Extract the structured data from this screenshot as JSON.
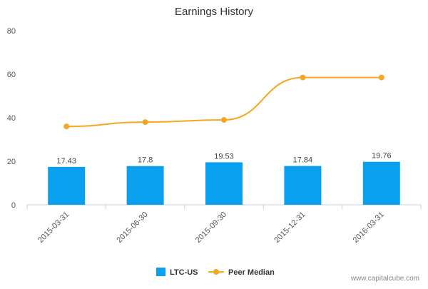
{
  "chart_data": {
    "type": "bar",
    "title": "Earnings History",
    "categories": [
      "2015-03-31",
      "2015-06-30",
      "2015-09-30",
      "2015-12-31",
      "2016-03-31"
    ],
    "series": [
      {
        "name": "LTC-US",
        "type": "bar",
        "color": "#0aa0f0",
        "values": [
          17.43,
          17.8,
          19.53,
          17.84,
          19.76
        ]
      },
      {
        "name": "Peer Median",
        "type": "line",
        "color": "#f5a623",
        "values": [
          36,
          38,
          39,
          58.5,
          58.5
        ]
      }
    ],
    "ylim": [
      0,
      80
    ],
    "yticks": [
      0,
      20,
      40,
      60,
      80
    ],
    "legend_position": "bottom-center",
    "grid": false
  },
  "footer": {
    "source": "www.capitalcube.com"
  }
}
